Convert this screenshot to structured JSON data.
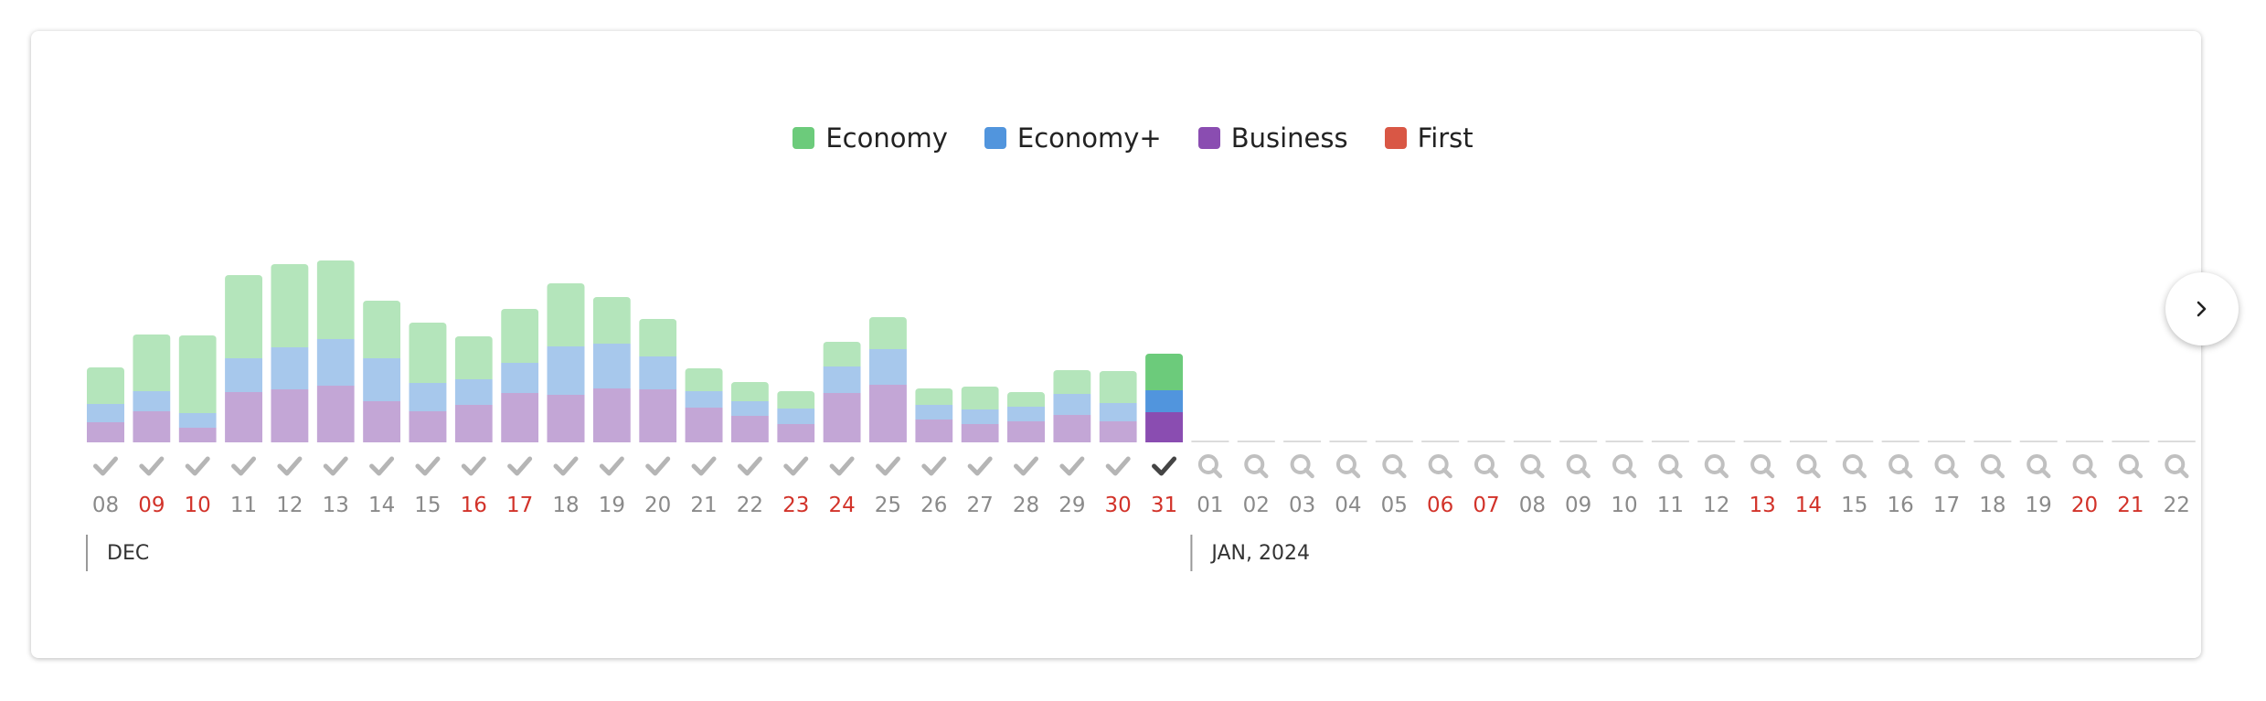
{
  "chart_data": {
    "type": "bar",
    "stacked": true,
    "legend": [
      "Economy",
      "Economy+",
      "Business",
      "First"
    ],
    "colors": {
      "Economy": "#6ccb7b",
      "Economy+": "#5195dd",
      "Business": "#8a4db1",
      "First": "#d95745",
      "Economy_faded": "#b4e5bb",
      "Economy+_faded": "#a7c8ec",
      "Business_faded": "#c3a6d6",
      "weekend_label": "#d2332a",
      "label": "#8a8a8a",
      "check": "#b5b5b5",
      "check_selected": "#444444",
      "search": "#c0c0c0"
    },
    "selected_index": 23,
    "groups": [
      {
        "label": "DEC",
        "start": 0
      },
      {
        "label": "JAN, 2024",
        "start": 24
      }
    ],
    "days": [
      {
        "label": "08",
        "weekend": false,
        "searched": true,
        "economy": 40,
        "economy_plus": 20,
        "business": 22
      },
      {
        "label": "09",
        "weekend": true,
        "searched": true,
        "economy": 62,
        "economy_plus": 22,
        "business": 34
      },
      {
        "label": "10",
        "weekend": true,
        "searched": true,
        "economy": 85,
        "economy_plus": 16,
        "business": 16
      },
      {
        "label": "11",
        "weekend": false,
        "searched": true,
        "economy": 91,
        "economy_plus": 37,
        "business": 55
      },
      {
        "label": "12",
        "weekend": false,
        "searched": true,
        "economy": 91,
        "economy_plus": 46,
        "business": 58
      },
      {
        "label": "13",
        "weekend": false,
        "searched": true,
        "economy": 86,
        "economy_plus": 51,
        "business": 62
      },
      {
        "label": "14",
        "weekend": false,
        "searched": true,
        "economy": 63,
        "economy_plus": 47,
        "business": 45
      },
      {
        "label": "15",
        "weekend": false,
        "searched": true,
        "economy": 66,
        "economy_plus": 31,
        "business": 34
      },
      {
        "label": "16",
        "weekend": true,
        "searched": true,
        "economy": 47,
        "economy_plus": 28,
        "business": 41
      },
      {
        "label": "17",
        "weekend": true,
        "searched": true,
        "economy": 59,
        "economy_plus": 33,
        "business": 54
      },
      {
        "label": "18",
        "weekend": false,
        "searched": true,
        "economy": 69,
        "economy_plus": 53,
        "business": 52
      },
      {
        "label": "19",
        "weekend": false,
        "searched": true,
        "economy": 51,
        "economy_plus": 49,
        "business": 59
      },
      {
        "label": "20",
        "weekend": false,
        "searched": true,
        "economy": 41,
        "economy_plus": 36,
        "business": 58
      },
      {
        "label": "21",
        "weekend": false,
        "searched": true,
        "economy": 25,
        "economy_plus": 18,
        "business": 38
      },
      {
        "label": "22",
        "weekend": false,
        "searched": true,
        "economy": 21,
        "economy_plus": 16,
        "business": 29
      },
      {
        "label": "23",
        "weekend": true,
        "searched": true,
        "economy": 19,
        "economy_plus": 17,
        "business": 20
      },
      {
        "label": "24",
        "weekend": true,
        "searched": true,
        "economy": 27,
        "economy_plus": 29,
        "business": 54
      },
      {
        "label": "25",
        "weekend": false,
        "searched": true,
        "economy": 35,
        "economy_plus": 39,
        "business": 63
      },
      {
        "label": "26",
        "weekend": false,
        "searched": true,
        "economy": 18,
        "economy_plus": 16,
        "business": 25
      },
      {
        "label": "27",
        "weekend": false,
        "searched": true,
        "economy": 25,
        "economy_plus": 16,
        "business": 20
      },
      {
        "label": "28",
        "weekend": false,
        "searched": true,
        "economy": 16,
        "economy_plus": 16,
        "business": 23
      },
      {
        "label": "29",
        "weekend": false,
        "searched": true,
        "economy": 26,
        "economy_plus": 23,
        "business": 30
      },
      {
        "label": "30",
        "weekend": true,
        "searched": true,
        "economy": 35,
        "economy_plus": 20,
        "business": 23
      },
      {
        "label": "31",
        "weekend": true,
        "searched": true,
        "economy": 40,
        "economy_plus": 24,
        "business": 33
      },
      {
        "label": "01",
        "weekend": false,
        "searched": false
      },
      {
        "label": "02",
        "weekend": false,
        "searched": false
      },
      {
        "label": "03",
        "weekend": false,
        "searched": false
      },
      {
        "label": "04",
        "weekend": false,
        "searched": false
      },
      {
        "label": "05",
        "weekend": false,
        "searched": false
      },
      {
        "label": "06",
        "weekend": true,
        "searched": false
      },
      {
        "label": "07",
        "weekend": true,
        "searched": false
      },
      {
        "label": "08",
        "weekend": false,
        "searched": false
      },
      {
        "label": "09",
        "weekend": false,
        "searched": false
      },
      {
        "label": "10",
        "weekend": false,
        "searched": false
      },
      {
        "label": "11",
        "weekend": false,
        "searched": false
      },
      {
        "label": "12",
        "weekend": false,
        "searched": false
      },
      {
        "label": "13",
        "weekend": true,
        "searched": false
      },
      {
        "label": "14",
        "weekend": true,
        "searched": false
      },
      {
        "label": "15",
        "weekend": false,
        "searched": false
      },
      {
        "label": "16",
        "weekend": false,
        "searched": false
      },
      {
        "label": "17",
        "weekend": false,
        "searched": false
      },
      {
        "label": "18",
        "weekend": false,
        "searched": false
      },
      {
        "label": "19",
        "weekend": false,
        "searched": false
      },
      {
        "label": "20",
        "weekend": true,
        "searched": false
      },
      {
        "label": "21",
        "weekend": true,
        "searched": false
      },
      {
        "label": "22",
        "weekend": false,
        "searched": false
      }
    ]
  },
  "controls": {
    "next_icon": "chevron-right-icon"
  }
}
